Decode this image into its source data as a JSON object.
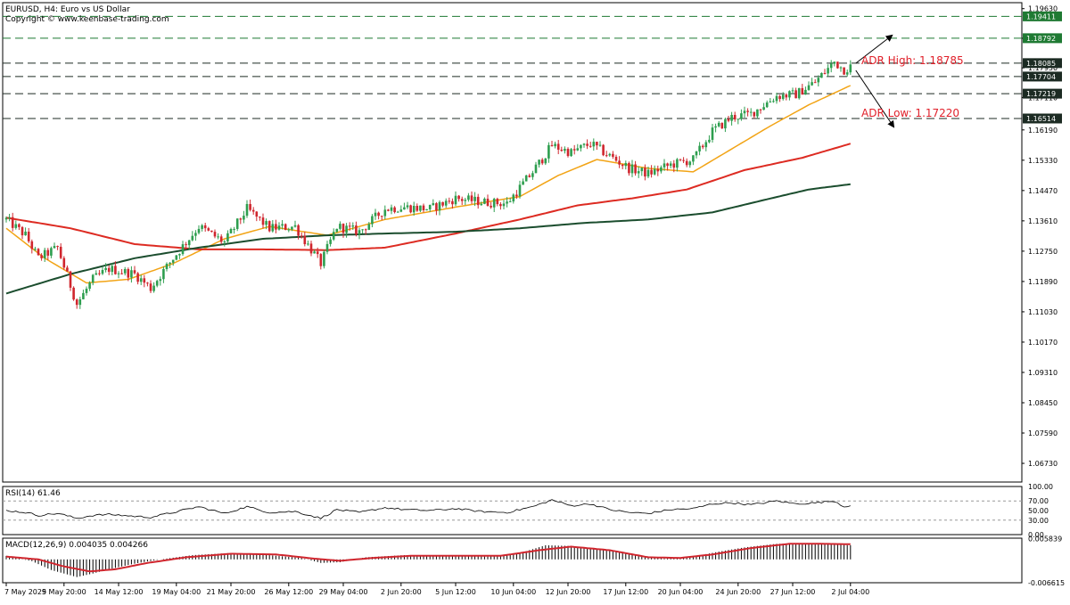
{
  "header": {
    "title": "EURUSD, H4:  Euro vs US Dollar",
    "copyright": "Copyright © www.keenbase-trading.com"
  },
  "colors": {
    "bull": "#2e9e4f",
    "bear": "#d0262e",
    "ma_fast": "#f2a416",
    "ma_mid": "#dd2b22",
    "ma_slow": "#1b4d2e",
    "level_green": "#1f7a33",
    "level_black": "#1c2b23",
    "annotation": "#e0202a",
    "rsi_line": "#000000",
    "macd_hist": "#000000",
    "macd_signal": "#d0262e"
  },
  "chart_data": [
    {
      "type": "candlestick",
      "symbol": "EURUSD",
      "timeframe": "H4",
      "ylim": [
        1.062,
        1.198
      ],
      "y_ticks": [
        "1.19630",
        "1.18790",
        "1.17950",
        "1.17110",
        "1.16190",
        "1.15330",
        "1.14470",
        "1.13610",
        "1.12750",
        "1.11890",
        "1.11030",
        "1.10170",
        "1.09310",
        "1.08450",
        "1.07590",
        "1.06730"
      ],
      "x_ticks": [
        "7 May 2025",
        "9 May 20:00",
        "14 May 12:00",
        "19 May 04:00",
        "21 May 20:00",
        "26 May 12:00",
        "29 May 04:00",
        "2 Jun 20:00",
        "5 Jun 12:00",
        "10 Jun 04:00",
        "12 Jun 20:00",
        "17 Jun 12:00",
        "20 Jun 04:00",
        "24 Jun 20:00",
        "27 Jun 12:00",
        "2 Jul 04:00"
      ],
      "price_anchors": [
        [
          0,
          1.1365
        ],
        [
          6,
          1.132
        ],
        [
          10,
          1.1255
        ],
        [
          16,
          1.1285
        ],
        [
          22,
          1.1125
        ],
        [
          27,
          1.1195
        ],
        [
          32,
          1.1225
        ],
        [
          40,
          1.121
        ],
        [
          45,
          1.117
        ],
        [
          52,
          1.1255
        ],
        [
          60,
          1.1345
        ],
        [
          68,
          1.13
        ],
        [
          75,
          1.1395
        ],
        [
          82,
          1.134
        ],
        [
          90,
          1.1345
        ],
        [
          98,
          1.124
        ],
        [
          103,
          1.1345
        ],
        [
          110,
          1.133
        ],
        [
          118,
          1.1395
        ],
        [
          124,
          1.14
        ],
        [
          132,
          1.1395
        ],
        [
          140,
          1.1425
        ],
        [
          148,
          1.1415
        ],
        [
          156,
          1.141
        ],
        [
          164,
          1.15
        ],
        [
          170,
          1.1575
        ],
        [
          176,
          1.1555
        ],
        [
          182,
          1.158
        ],
        [
          188,
          1.1545
        ],
        [
          194,
          1.151
        ],
        [
          200,
          1.1495
        ],
        [
          207,
          1.152
        ],
        [
          214,
          1.1535
        ],
        [
          220,
          1.1615
        ],
        [
          226,
          1.1655
        ],
        [
          232,
          1.1665
        ],
        [
          240,
          1.1715
        ],
        [
          246,
          1.172
        ],
        [
          252,
          1.1755
        ],
        [
          258,
          1.1812
        ],
        [
          261,
          1.179
        ],
        [
          263,
          1.1798
        ]
      ],
      "series": [
        {
          "name": "",
          "kind": "moving_average",
          "anchors": [
            [
              0,
              1.134
            ],
            [
              12,
              1.1255
            ],
            [
              25,
              1.1185
            ],
            [
              38,
              1.1195
            ],
            [
              52,
              1.124
            ],
            [
              68,
              1.131
            ],
            [
              82,
              1.1345
            ],
            [
              100,
              1.132
            ],
            [
              118,
              1.1365
            ],
            [
              140,
              1.14
            ],
            [
              160,
              1.143
            ],
            [
              172,
              1.149
            ],
            [
              184,
              1.1535
            ],
            [
              200,
              1.151
            ],
            [
              214,
              1.15
            ],
            [
              226,
              1.1565
            ],
            [
              238,
              1.163
            ],
            [
              250,
              1.169
            ],
            [
              263,
              1.1745
            ]
          ]
        },
        {
          "name": "",
          "kind": "moving_average",
          "anchors": [
            [
              0,
              1.137
            ],
            [
              20,
              1.134
            ],
            [
              40,
              1.1295
            ],
            [
              60,
              1.128
            ],
            [
              80,
              1.128
            ],
            [
              100,
              1.1278
            ],
            [
              118,
              1.1285
            ],
            [
              140,
              1.1325
            ],
            [
              160,
              1.1365
            ],
            [
              178,
              1.1405
            ],
            [
              195,
              1.1425
            ],
            [
              212,
              1.145
            ],
            [
              230,
              1.1505
            ],
            [
              248,
              1.154
            ],
            [
              263,
              1.158
            ]
          ]
        },
        {
          "name": "",
          "kind": "moving_average",
          "anchors": [
            [
              0,
              1.1155
            ],
            [
              20,
              1.121
            ],
            [
              40,
              1.1255
            ],
            [
              60,
              1.1285
            ],
            [
              80,
              1.131
            ],
            [
              100,
              1.132
            ],
            [
              118,
              1.1325
            ],
            [
              140,
              1.133
            ],
            [
              160,
              1.134
            ],
            [
              180,
              1.1355
            ],
            [
              200,
              1.1365
            ],
            [
              220,
              1.1385
            ],
            [
              236,
              1.142
            ],
            [
              250,
              1.145
            ],
            [
              263,
              1.1465
            ]
          ]
        }
      ],
      "levels": [
        {
          "price": 1.19411,
          "label": "1.19411",
          "style": "green"
        },
        {
          "price": 1.18792,
          "label": "1.18792",
          "style": "green"
        },
        {
          "price": 1.18085,
          "label": "1.18085",
          "style": "black"
        },
        {
          "price": 1.17704,
          "label": "1.17704",
          "style": "black"
        },
        {
          "price": 1.17219,
          "label": "1.17219",
          "style": "black"
        },
        {
          "price": 1.16514,
          "label": "1.16514",
          "style": "black"
        }
      ],
      "annotations": [
        {
          "text": "ADR High: 1.18785",
          "direction": "up"
        },
        {
          "text": "ADR Low: 1.17220",
          "direction": "down"
        }
      ],
      "n_bars": 264
    },
    {
      "type": "line",
      "name": "RSI(14)",
      "label": "RSI(14) 61.46",
      "value": 61.46,
      "ylim": [
        0,
        100
      ],
      "levels": [
        30,
        70
      ],
      "y_ticks": [
        "100.00",
        "70.00",
        "50.00",
        "30.00",
        "0.00"
      ],
      "anchors": [
        [
          0,
          50
        ],
        [
          6,
          46
        ],
        [
          10,
          40
        ],
        [
          16,
          44
        ],
        [
          22,
          34
        ],
        [
          27,
          40
        ],
        [
          32,
          42
        ],
        [
          40,
          38
        ],
        [
          45,
          36
        ],
        [
          52,
          46
        ],
        [
          60,
          58
        ],
        [
          68,
          44
        ],
        [
          75,
          58
        ],
        [
          82,
          46
        ],
        [
          90,
          48
        ],
        [
          98,
          34
        ],
        [
          103,
          52
        ],
        [
          110,
          46
        ],
        [
          118,
          56
        ],
        [
          124,
          52
        ],
        [
          132,
          50
        ],
        [
          140,
          54
        ],
        [
          148,
          48
        ],
        [
          156,
          46
        ],
        [
          164,
          58
        ],
        [
          170,
          72
        ],
        [
          176,
          60
        ],
        [
          182,
          64
        ],
        [
          188,
          52
        ],
        [
          194,
          46
        ],
        [
          200,
          44
        ],
        [
          207,
          52
        ],
        [
          214,
          54
        ],
        [
          220,
          64
        ],
        [
          226,
          66
        ],
        [
          232,
          62
        ],
        [
          240,
          70
        ],
        [
          246,
          64
        ],
        [
          252,
          66
        ],
        [
          258,
          70
        ],
        [
          261,
          58
        ],
        [
          263,
          61.46
        ]
      ]
    },
    {
      "type": "bar",
      "name": "MACD(12,26,9)",
      "label": "MACD(12,26,9) 0.004035 0.004266",
      "macd": 0.004035,
      "signal": 0.004266,
      "ylim": [
        -0.0066,
        0.006
      ],
      "y_ticks": [
        "0.005839",
        "-0.006615"
      ],
      "hist_anchors": [
        [
          0,
          0.001
        ],
        [
          8,
          -0.0005
        ],
        [
          14,
          -0.003
        ],
        [
          22,
          -0.005
        ],
        [
          27,
          -0.004
        ],
        [
          32,
          -0.0028
        ],
        [
          40,
          -0.0012
        ],
        [
          48,
          0.0
        ],
        [
          58,
          0.0012
        ],
        [
          70,
          0.0018
        ],
        [
          82,
          0.0012
        ],
        [
          92,
          0.0004
        ],
        [
          98,
          -0.001
        ],
        [
          104,
          -0.0008
        ],
        [
          112,
          0.0006
        ],
        [
          124,
          0.0012
        ],
        [
          136,
          0.001
        ],
        [
          150,
          0.0008
        ],
        [
          160,
          0.0018
        ],
        [
          168,
          0.004
        ],
        [
          176,
          0.0038
        ],
        [
          184,
          0.003
        ],
        [
          192,
          0.0018
        ],
        [
          200,
          0.0004
        ],
        [
          208,
          0.0002
        ],
        [
          214,
          0.0008
        ],
        [
          222,
          0.0022
        ],
        [
          230,
          0.0034
        ],
        [
          240,
          0.0044
        ],
        [
          250,
          0.0046
        ],
        [
          263,
          0.004
        ]
      ],
      "signal_anchors": [
        [
          0,
          0.0008
        ],
        [
          10,
          0.0
        ],
        [
          18,
          -0.002
        ],
        [
          26,
          -0.0034
        ],
        [
          34,
          -0.0028
        ],
        [
          44,
          -0.001
        ],
        [
          56,
          0.0006
        ],
        [
          70,
          0.0016
        ],
        [
          84,
          0.0014
        ],
        [
          96,
          0.0002
        ],
        [
          104,
          -0.0004
        ],
        [
          114,
          0.0004
        ],
        [
          126,
          0.001
        ],
        [
          140,
          0.001
        ],
        [
          154,
          0.001
        ],
        [
          166,
          0.0026
        ],
        [
          176,
          0.0036
        ],
        [
          188,
          0.0026
        ],
        [
          200,
          0.0006
        ],
        [
          210,
          0.0004
        ],
        [
          220,
          0.0014
        ],
        [
          232,
          0.0032
        ],
        [
          244,
          0.0044
        ],
        [
          254,
          0.0044
        ],
        [
          263,
          0.0043
        ]
      ]
    }
  ]
}
